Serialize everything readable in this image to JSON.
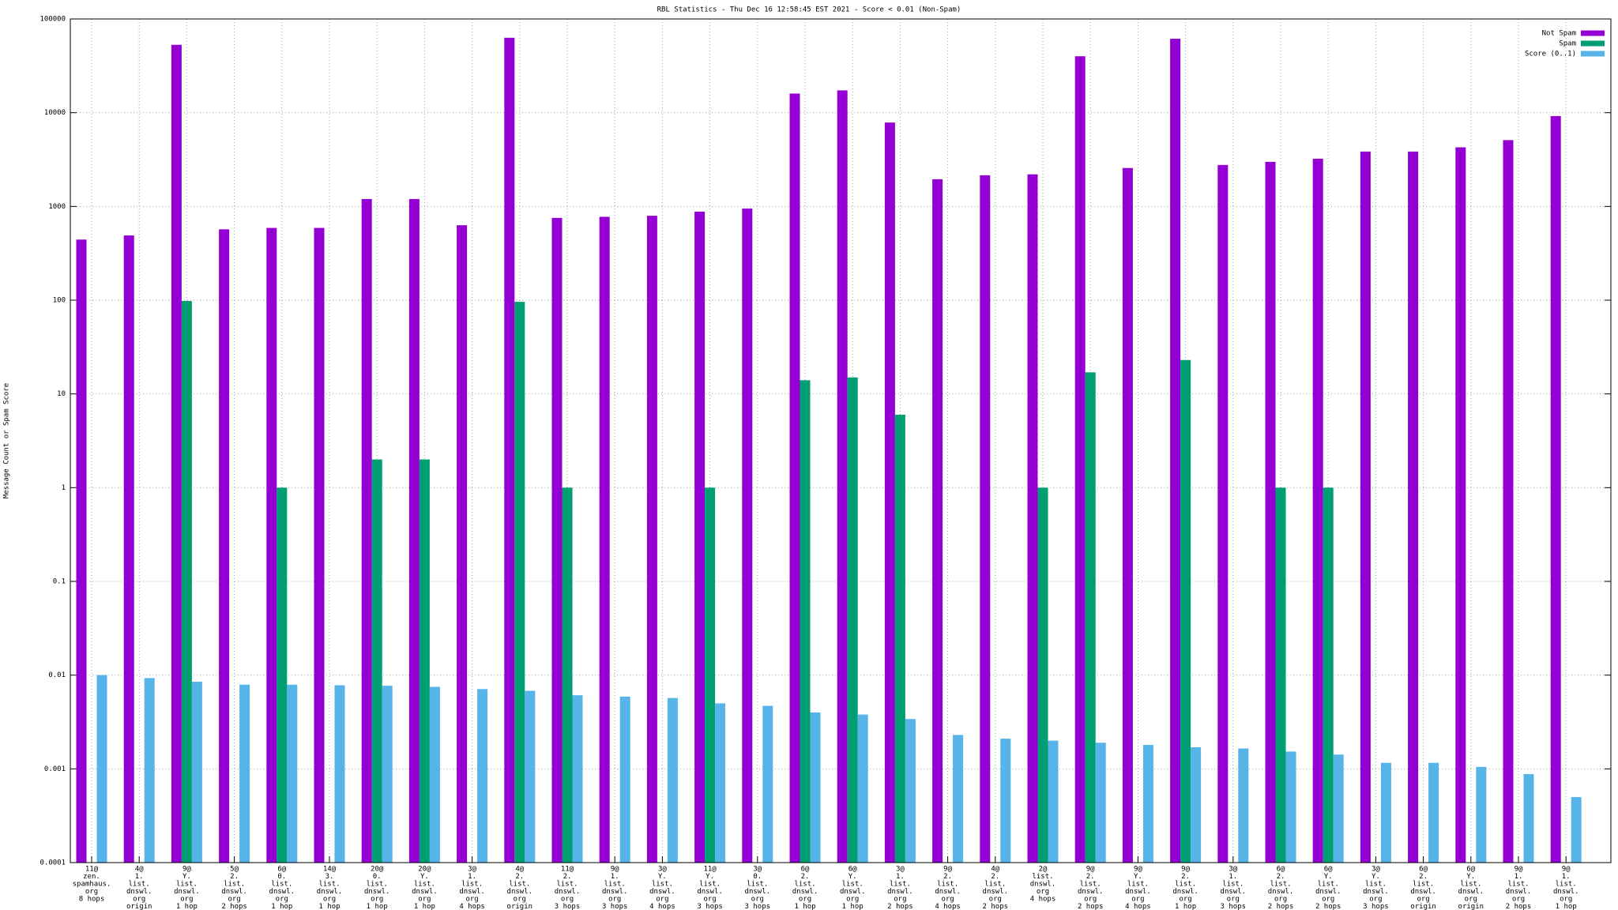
{
  "chart_data": {
    "type": "bar",
    "title": "RBL Statistics - Thu Dec 16 12:58:45 EST 2021 - Score < 0.01 (Non-Spam)",
    "y_label": "Message Count or Spam Score",
    "log_scale": true,
    "grid": true,
    "legend": "top-right",
    "ylim": [
      0.0001,
      100000
    ],
    "yticks": [
      0.0001,
      0.001,
      0.01,
      0.1,
      1,
      10,
      100,
      1000,
      10000,
      100000
    ],
    "categories": [
      [
        "11@",
        "zen.",
        "spamhaus.",
        "org",
        "8 hops"
      ],
      [
        "4@",
        "1.",
        "list.",
        "dnswl.",
        "org",
        "origin"
      ],
      [
        "9@",
        "Y.",
        "list.",
        "dnswl.",
        "org",
        "1 hop"
      ],
      [
        "5@",
        "2.",
        "list.",
        "dnswl.",
        "org",
        "2 hops"
      ],
      [
        "6@",
        "0.",
        "list.",
        "dnswl.",
        "org",
        "1 hop"
      ],
      [
        "14@",
        "3.",
        "list.",
        "dnswl.",
        "org",
        "1 hop"
      ],
      [
        "20@",
        "0.",
        "list.",
        "dnswl.",
        "org",
        "1 hop"
      ],
      [
        "20@",
        "Y.",
        "list.",
        "dnswl.",
        "org",
        "1 hop"
      ],
      [
        "3@",
        "1.",
        "list.",
        "dnswl.",
        "org",
        "4 hops"
      ],
      [
        "4@",
        "2.",
        "list.",
        "dnswl.",
        "org",
        "origin"
      ],
      [
        "11@",
        "2.",
        "list.",
        "dnswl.",
        "org",
        "3 hops"
      ],
      [
        "9@",
        "1.",
        "list.",
        "dnswl.",
        "org",
        "3 hops"
      ],
      [
        "3@",
        "Y.",
        "list.",
        "dnswl.",
        "org",
        "4 hops"
      ],
      [
        "11@",
        "Y.",
        "list.",
        "dnswl.",
        "org",
        "3 hops"
      ],
      [
        "3@",
        "0.",
        "list.",
        "dnswl.",
        "org",
        "3 hops"
      ],
      [
        "6@",
        "2.",
        "list.",
        "dnswl.",
        "org",
        "1 hop"
      ],
      [
        "6@",
        "Y.",
        "list.",
        "dnswl.",
        "org",
        "1 hop"
      ],
      [
        "3@",
        "1.",
        "list.",
        "dnswl.",
        "org",
        "2 hops"
      ],
      [
        "9@",
        "2.",
        "list.",
        "dnswl.",
        "org",
        "4 hops"
      ],
      [
        "4@",
        "2.",
        "list.",
        "dnswl.",
        "org",
        "2 hops"
      ],
      [
        "2@",
        "list.",
        "dnswl.",
        "org",
        "4 hops"
      ],
      [
        "9@",
        "2.",
        "list.",
        "dnswl.",
        "org",
        "2 hops"
      ],
      [
        "9@",
        "Y.",
        "list.",
        "dnswl.",
        "org",
        "4 hops"
      ],
      [
        "9@",
        "2.",
        "list.",
        "dnswl.",
        "org",
        "1 hop"
      ],
      [
        "3@",
        "1.",
        "list.",
        "dnswl.",
        "org",
        "3 hops"
      ],
      [
        "6@",
        "2.",
        "list.",
        "dnswl.",
        "org",
        "2 hops"
      ],
      [
        "6@",
        "Y.",
        "list.",
        "dnswl.",
        "org",
        "2 hops"
      ],
      [
        "3@",
        "Y.",
        "list.",
        "dnswl.",
        "org",
        "3 hops"
      ],
      [
        "6@",
        "2.",
        "list.",
        "dnswl.",
        "org",
        "origin"
      ],
      [
        "6@",
        "Y.",
        "list.",
        "dnswl.",
        "org",
        "origin"
      ],
      [
        "9@",
        "1.",
        "list.",
        "dnswl.",
        "org",
        "2 hops"
      ],
      [
        "9@",
        "1.",
        "list.",
        "dnswl.",
        "org",
        "1 hop"
      ]
    ],
    "series": [
      {
        "name": "Not Spam",
        "color": "#9400d3",
        "values": [
          443,
          490,
          53000,
          570,
          590,
          590,
          1200,
          1200,
          630,
          63000,
          755,
          775,
          795,
          880,
          950,
          16000,
          17300,
          7850,
          1950,
          2150,
          2200,
          40000,
          2570,
          61500,
          2770,
          2990,
          3230,
          3850,
          3850,
          4270,
          5100,
          9200
        ]
      },
      {
        "name": "Spam",
        "color": "#009e73",
        "values": [
          null,
          null,
          98,
          null,
          1,
          null,
          2,
          2,
          null,
          96,
          1,
          null,
          null,
          1,
          null,
          14,
          15,
          6,
          null,
          null,
          1,
          17,
          null,
          23,
          null,
          1,
          1,
          null,
          null,
          null,
          null,
          null
        ]
      },
      {
        "name": "Score (0..1)",
        "color": "#56b4e9",
        "values": [
          0.01,
          0.0093,
          0.0085,
          0.0079,
          0.0079,
          0.0078,
          0.0077,
          0.0075,
          0.0071,
          0.0068,
          0.0061,
          0.0059,
          0.0057,
          0.005,
          0.0047,
          0.004,
          0.0038,
          0.0034,
          0.0023,
          0.0021,
          0.002,
          0.0019,
          0.0018,
          0.0017,
          0.00165,
          0.00153,
          0.00142,
          0.00116,
          0.00116,
          0.00105,
          0.00088,
          0.0005
        ]
      }
    ]
  }
}
